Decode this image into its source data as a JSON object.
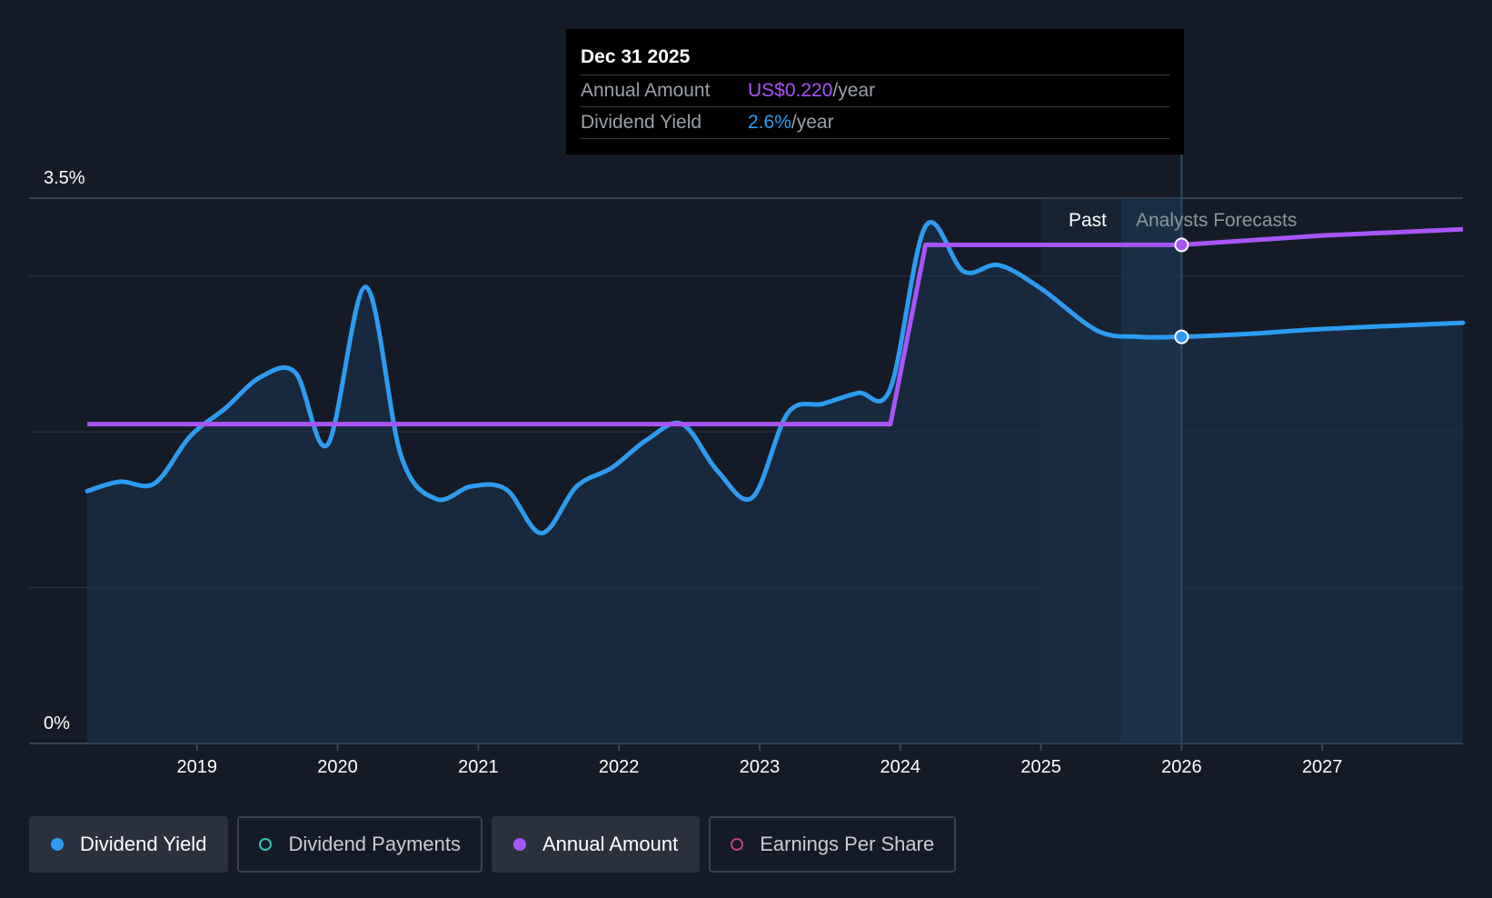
{
  "tooltip": {
    "date": "Dec 31 2025",
    "rows": [
      {
        "label": "Annual Amount",
        "value": "US$0.220",
        "unit": "/year"
      },
      {
        "label": "Dividend Yield",
        "value": "2.6%",
        "unit": "/year"
      }
    ]
  },
  "regions": {
    "past_label": "Past",
    "forecast_label": "Analysts Forecasts"
  },
  "legend": [
    {
      "label": "Dividend Yield",
      "active": true,
      "filled": true,
      "color": "#2d9cf0"
    },
    {
      "label": "Dividend Payments",
      "active": false,
      "filled": false,
      "color": "#2ec4b6"
    },
    {
      "label": "Annual Amount",
      "active": true,
      "filled": true,
      "color": "#a855f7"
    },
    {
      "label": "Earnings Per Share",
      "active": false,
      "filled": false,
      "color": "#c2417a"
    }
  ],
  "colors": {
    "background": "#151b26",
    "yield": "#2d9cf0",
    "annual_amount": "#a855f7",
    "grid": "#2e3542",
    "axis_text": "#ffffff"
  },
  "chart_data": {
    "type": "line",
    "ylim": [
      0,
      3.5
    ],
    "y_tick_labels": [
      {
        "value": 3.5,
        "label": "3.5%"
      },
      {
        "value": 0,
        "label": "0%"
      }
    ],
    "gridlines": [
      3.5,
      3.0,
      2.0,
      1.0,
      0
    ],
    "x_ticks": [
      2019,
      2020,
      2021,
      2022,
      2023,
      2024,
      2025,
      2026,
      2027
    ],
    "xlim": [
      2018.22,
      2028.0
    ],
    "past_start": 2025.0,
    "forecast_start": 2025.57,
    "cursor_x": 2026.0,
    "series": [
      {
        "name": "Dividend Yield",
        "points": [
          [
            2018.22,
            1.62
          ],
          [
            2018.45,
            1.68
          ],
          [
            2018.7,
            1.67
          ],
          [
            2018.95,
            1.97
          ],
          [
            2019.2,
            2.15
          ],
          [
            2019.45,
            2.35
          ],
          [
            2019.7,
            2.38
          ],
          [
            2019.93,
            1.92
          ],
          [
            2020.2,
            2.93
          ],
          [
            2020.45,
            1.85
          ],
          [
            2020.7,
            1.57
          ],
          [
            2020.95,
            1.65
          ],
          [
            2021.2,
            1.63
          ],
          [
            2021.45,
            1.35
          ],
          [
            2021.7,
            1.65
          ],
          [
            2021.95,
            1.77
          ],
          [
            2022.2,
            1.95
          ],
          [
            2022.45,
            2.05
          ],
          [
            2022.7,
            1.75
          ],
          [
            2022.95,
            1.58
          ],
          [
            2023.2,
            2.12
          ],
          [
            2023.45,
            2.18
          ],
          [
            2023.7,
            2.25
          ],
          [
            2023.93,
            2.28
          ],
          [
            2024.18,
            3.32
          ],
          [
            2024.45,
            3.03
          ],
          [
            2024.7,
            3.07
          ],
          [
            2025.0,
            2.92
          ],
          [
            2025.4,
            2.65
          ],
          [
            2025.7,
            2.61
          ],
          [
            2026.0,
            2.61
          ],
          [
            2026.5,
            2.63
          ],
          [
            2027.0,
            2.66
          ],
          [
            2028.0,
            2.7
          ]
        ]
      },
      {
        "name": "Annual Amount",
        "points": [
          [
            2018.22,
            2.05
          ],
          [
            2023.93,
            2.05
          ],
          [
            2024.18,
            3.2
          ],
          [
            2025.0,
            3.2
          ],
          [
            2026.0,
            3.2
          ],
          [
            2026.5,
            3.23
          ],
          [
            2027.0,
            3.26
          ],
          [
            2028.0,
            3.3
          ]
        ]
      }
    ]
  }
}
